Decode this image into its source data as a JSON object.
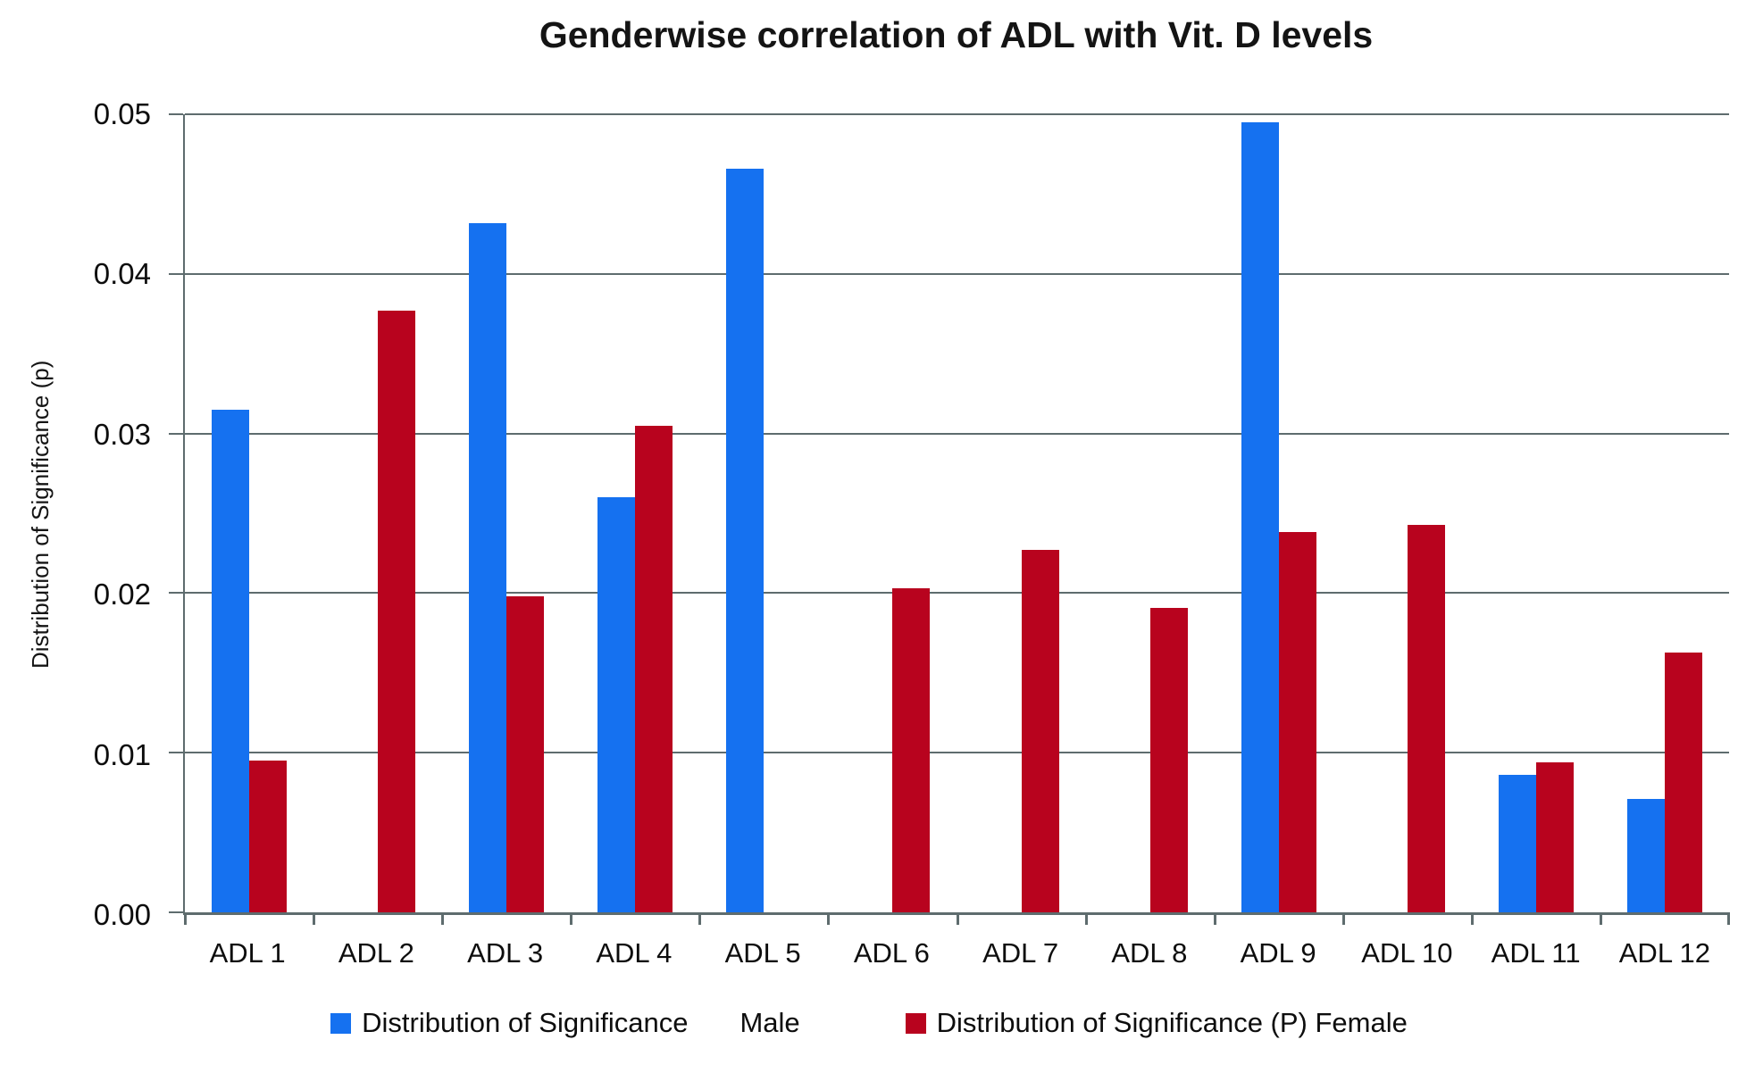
{
  "title": "Genderwise correlation of ADL with Vit. D levels",
  "colors": {
    "male_blue": "#1571F0",
    "female_red": "#B8031E",
    "axis_gray": "#5E6C6E"
  },
  "legend": {
    "male": {
      "label": "Distribution of Significance",
      "suffix": "Male"
    },
    "female": {
      "label": "Distribution of Significance (P) Female"
    }
  },
  "chart_data": {
    "type": "bar",
    "title": "Genderwise correlation of ADL with Vit. D levels",
    "xlabel": "",
    "ylabel": "Distribution of Significance (p)",
    "ylim": [
      0,
      0.05
    ],
    "yticks": [
      "0.05",
      "0.04",
      "0.03",
      "0.02",
      "0.01",
      "0.00"
    ],
    "grid": true,
    "legend_position": "bottom",
    "categories": [
      "ADL 1",
      "ADL 2",
      "ADL 3",
      "ADL 4",
      "ADL 5",
      "ADL 6",
      "ADL 7",
      "ADL 8",
      "ADL 9",
      "ADL 10",
      "ADL 11",
      "ADL 12"
    ],
    "series": [
      {
        "key": "male",
        "name": "Distribution of Significance Male",
        "color": "#1571F0",
        "values": [
          0.0315,
          0,
          0.0432,
          0.026,
          0.0466,
          0,
          0,
          0,
          0.0495,
          0,
          0.0086,
          0.0071
        ]
      },
      {
        "key": "female",
        "name": "Distribution of Significance (P) Female",
        "color": "#B8031E",
        "values": [
          0.0095,
          0.0377,
          0.0198,
          0.0305,
          0,
          0.0203,
          0.0227,
          0.0191,
          0.0238,
          0.0243,
          0.0094,
          0.0163
        ]
      }
    ]
  }
}
